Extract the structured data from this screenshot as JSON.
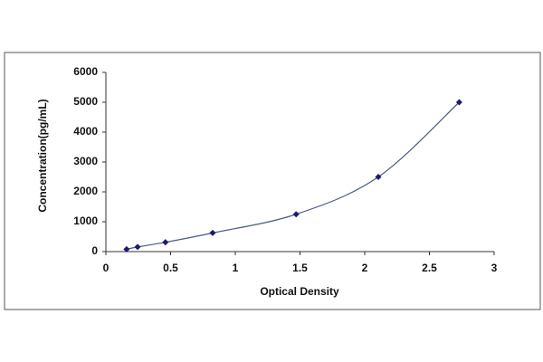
{
  "chart_data": {
    "type": "scatter",
    "x_label": "Optical Density",
    "y_label": "Concentration(pg/mL)",
    "x": [
      0.16,
      0.245,
      0.46,
      0.825,
      1.47,
      2.105,
      2.73
    ],
    "values": [
      78,
      156,
      312,
      625,
      1250,
      2500,
      5000
    ],
    "color": "#1c1c6e",
    "line": true,
    "line_color": "#4c5a84",
    "xlim": [
      0,
      3
    ],
    "xticks": [
      0,
      0.5,
      1,
      1.5,
      2,
      2.5,
      3
    ],
    "ylim": [
      0,
      6000
    ],
    "yticks": [
      0,
      1000,
      2000,
      3000,
      4000,
      5000,
      6000
    ]
  }
}
